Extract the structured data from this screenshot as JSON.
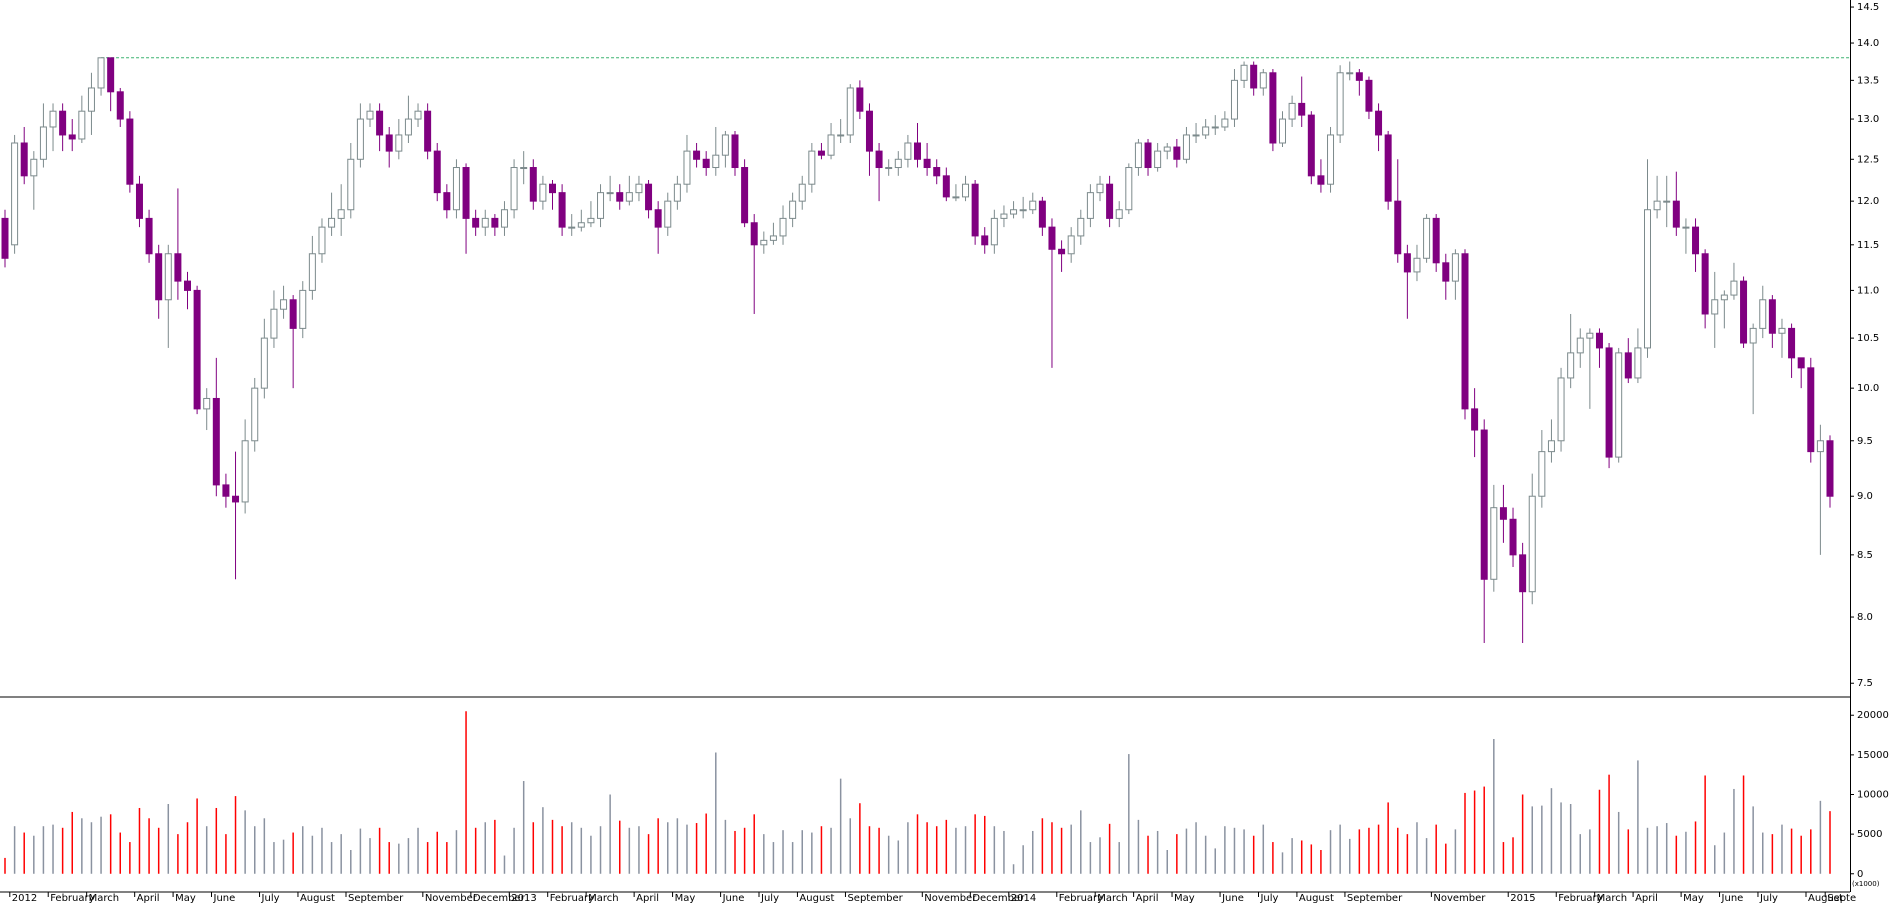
{
  "chart_data": {
    "type": "candlestick",
    "log": true,
    "ylim": [
      7.4,
      14.6
    ],
    "yticks": [
      7.5,
      {
        "value": 8,
        "label": "8.0"
      },
      8.5,
      {
        "value": 9,
        "label": "9.0"
      },
      9.5,
      {
        "value": 10,
        "label": "10.0"
      },
      10.5,
      {
        "value": 11,
        "label": "11.0"
      },
      11.5,
      {
        "value": 12,
        "label": "12.0"
      },
      12.5,
      {
        "value": 13,
        "label": "13.0"
      },
      13.5,
      {
        "value": 14,
        "label": "14.0"
      },
      14.5
    ],
    "y2lim": [
      -2300,
      22300
    ],
    "y2ticks": [
      0,
      5000,
      10000,
      15000,
      20000
    ],
    "y2_label": "(x1000)",
    "up_color": "#ffffff",
    "up_edge_color": "#7c8a8c",
    "down_color": "#800080",
    "volume_up_color": "#8a92a0",
    "volume_down_color": "#ff0000",
    "reference_line": {
      "value": 13.8,
      "color": "#3cb371"
    },
    "categories": [
      null,
      "2012",
      null,
      null,
      null,
      "February",
      null,
      null,
      null,
      "March",
      null,
      null,
      null,
      null,
      "April",
      null,
      null,
      null,
      "May",
      null,
      null,
      null,
      "June",
      null,
      null,
      null,
      null,
      "July",
      null,
      null,
      null,
      "August",
      null,
      null,
      null,
      null,
      "September",
      null,
      null,
      null,
      null,
      null,
      null,
      null,
      "November",
      null,
      null,
      null,
      null,
      "December",
      null,
      null,
      null,
      "2013",
      null,
      null,
      null,
      "February",
      null,
      null,
      null,
      "March",
      null,
      null,
      null,
      null,
      "April",
      null,
      null,
      null,
      "May",
      null,
      null,
      null,
      null,
      "June",
      null,
      null,
      null,
      "July",
      null,
      null,
      null,
      "August",
      null,
      null,
      null,
      null,
      "September",
      null,
      null,
      null,
      null,
      null,
      null,
      null,
      "November",
      null,
      null,
      null,
      null,
      "December",
      null,
      null,
      null,
      "2014",
      null,
      null,
      null,
      null,
      "February",
      null,
      null,
      null,
      "March",
      null,
      null,
      null,
      "April",
      null,
      null,
      null,
      "May",
      null,
      null,
      null,
      null,
      "June",
      null,
      null,
      null,
      "July",
      null,
      null,
      null,
      "August",
      null,
      null,
      null,
      null,
      "September",
      null,
      null,
      null,
      null,
      null,
      null,
      null,
      null,
      "November",
      null,
      null,
      null,
      null,
      null,
      null,
      null,
      "2015",
      null,
      null,
      null,
      null,
      "February",
      null,
      null,
      null,
      "March",
      null,
      null,
      null,
      "April",
      null,
      null,
      null,
      null,
      "May",
      null,
      null,
      null,
      "June",
      null,
      null,
      null,
      "July",
      null,
      null,
      null,
      null,
      "August",
      null,
      "Septe"
    ],
    "open": [
      11.8,
      11.5,
      12.7,
      12.3,
      12.5,
      12.9,
      13.1,
      12.8,
      12.75,
      13.1,
      13.4,
      13.8,
      13.35,
      13.0,
      12.2,
      11.8,
      11.4,
      10.9,
      11.4,
      11.1,
      11.0,
      9.8,
      9.9,
      9.1,
      9.0,
      8.95,
      9.5,
      10.0,
      10.5,
      10.8,
      10.9,
      10.6,
      11.0,
      11.4,
      11.7,
      11.8,
      11.9,
      12.5,
      13.0,
      13.1,
      12.8,
      12.6,
      12.8,
      13.0,
      13.1,
      12.6,
      12.1,
      11.9,
      12.4,
      11.8,
      11.7,
      11.8,
      11.7,
      11.9,
      12.4,
      12.4,
      12.0,
      12.2,
      12.1,
      11.7,
      11.7,
      11.75,
      11.8,
      12.1,
      12.1,
      12.0,
      12.1,
      12.2,
      11.9,
      11.7,
      12.0,
      12.2,
      12.6,
      12.5,
      12.4,
      12.55,
      12.8,
      12.4,
      11.75,
      11.5,
      11.55,
      11.6,
      11.8,
      12.0,
      12.2,
      12.6,
      12.55,
      12.8,
      12.8,
      13.4,
      13.1,
      12.6,
      12.4,
      12.4,
      12.5,
      12.7,
      12.5,
      12.4,
      12.3,
      12.05,
      12.05,
      12.2,
      11.6,
      11.5,
      11.8,
      11.85,
      11.9,
      11.9,
      12.0,
      11.7,
      11.45,
      11.4,
      11.6,
      11.8,
      12.1,
      12.2,
      11.8,
      11.9,
      12.4,
      12.7,
      12.4,
      12.6,
      12.65,
      12.5,
      12.8,
      12.8,
      12.9,
      12.9,
      13.0,
      13.5,
      13.7,
      13.4,
      13.6,
      12.7,
      13.0,
      13.2,
      13.05,
      12.3,
      12.2,
      12.8,
      13.6,
      13.6,
      13.5,
      13.1,
      12.8,
      12.0,
      11.4,
      11.2,
      11.35,
      11.8,
      11.3,
      11.1,
      11.4,
      9.8,
      9.6,
      8.3,
      8.9,
      8.8,
      8.5,
      8.2,
      9.0,
      9.4,
      9.5,
      10.1,
      10.35,
      10.5,
      10.55,
      10.4,
      9.35,
      10.35,
      10.1,
      10.4,
      11.9,
      12.0,
      12.0,
      11.7,
      11.7,
      11.4,
      10.75,
      10.9,
      10.95,
      11.1,
      10.45,
      10.6,
      10.9,
      10.55,
      10.6,
      10.3,
      10.2,
      9.4,
      9.5
    ],
    "high": [
      11.9,
      12.8,
      12.9,
      12.6,
      13.2,
      13.2,
      13.2,
      13.0,
      13.3,
      13.6,
      13.8,
      13.8,
      13.4,
      13.1,
      12.3,
      11.9,
      11.5,
      11.5,
      12.15,
      11.2,
      11.05,
      10.0,
      10.3,
      9.2,
      9.4,
      9.7,
      10.1,
      10.7,
      11.0,
      11.05,
      10.95,
      11.1,
      11.6,
      11.8,
      12.1,
      12.2,
      12.7,
      13.2,
      13.2,
      13.2,
      12.9,
      13.0,
      13.3,
      13.2,
      13.2,
      12.7,
      12.2,
      12.5,
      12.45,
      11.9,
      11.9,
      11.85,
      12.0,
      12.5,
      12.6,
      12.5,
      12.3,
      12.25,
      12.2,
      11.85,
      11.9,
      12.0,
      12.2,
      12.3,
      12.2,
      12.3,
      12.3,
      12.25,
      12.0,
      12.1,
      12.3,
      12.8,
      12.7,
      12.6,
      12.9,
      12.85,
      12.85,
      12.5,
      11.85,
      11.65,
      11.75,
      11.95,
      12.1,
      12.3,
      12.7,
      12.7,
      12.95,
      13.0,
      13.45,
      13.5,
      13.2,
      12.7,
      12.5,
      12.6,
      12.8,
      12.95,
      12.7,
      12.5,
      12.4,
      12.2,
      12.3,
      12.25,
      11.7,
      11.9,
      11.95,
      12.0,
      12.05,
      12.1,
      12.05,
      11.8,
      11.55,
      11.7,
      11.9,
      12.2,
      12.3,
      12.3,
      12.0,
      12.45,
      12.75,
      12.75,
      12.7,
      12.7,
      12.75,
      12.9,
      12.95,
      13.0,
      13.05,
      13.1,
      13.65,
      13.75,
      13.75,
      13.65,
      13.65,
      13.1,
      13.3,
      13.55,
      13.1,
      12.5,
      12.9,
      13.7,
      13.75,
      13.65,
      13.55,
      13.2,
      12.85,
      12.5,
      11.5,
      11.5,
      11.85,
      11.85,
      11.4,
      11.45,
      11.45,
      10.0,
      9.7,
      9.1,
      9.1,
      8.9,
      8.6,
      9.2,
      9.6,
      9.7,
      10.2,
      10.75,
      10.6,
      10.6,
      10.6,
      10.45,
      10.4,
      10.5,
      10.6,
      12.5,
      12.3,
      12.3,
      12.35,
      11.8,
      11.8,
      11.45,
      11.2,
      11.0,
      11.3,
      11.15,
      10.65,
      11.05,
      10.95,
      10.7,
      10.65,
      10.3,
      10.3,
      9.65,
      9.55
    ],
    "low": [
      11.25,
      11.4,
      12.2,
      11.9,
      12.4,
      12.6,
      12.6,
      12.6,
      12.7,
      12.8,
      13.3,
      13.1,
      12.9,
      12.1,
      11.7,
      11.3,
      10.7,
      10.4,
      10.9,
      10.8,
      9.75,
      9.6,
      9.0,
      8.9,
      8.3,
      8.85,
      9.4,
      9.9,
      10.4,
      10.7,
      10.0,
      10.5,
      10.9,
      11.3,
      11.6,
      11.6,
      11.8,
      12.4,
      12.9,
      12.6,
      12.4,
      12.5,
      12.7,
      12.9,
      12.5,
      12.0,
      11.8,
      11.8,
      11.4,
      11.6,
      11.6,
      11.6,
      11.6,
      11.8,
      12.2,
      11.9,
      11.9,
      11.9,
      11.6,
      11.6,
      11.65,
      11.7,
      11.7,
      12.0,
      11.9,
      11.95,
      12.0,
      11.8,
      11.4,
      11.6,
      11.9,
      12.1,
      12.4,
      12.3,
      12.3,
      12.4,
      12.3,
      11.7,
      10.75,
      11.4,
      11.5,
      11.5,
      11.7,
      11.9,
      12.1,
      12.5,
      12.5,
      12.7,
      12.7,
      13.0,
      12.3,
      12.0,
      12.3,
      12.3,
      12.4,
      12.4,
      12.3,
      12.2,
      12.0,
      12.0,
      12.0,
      11.5,
      11.4,
      11.4,
      11.7,
      11.8,
      11.8,
      11.85,
      11.6,
      10.2,
      11.2,
      11.3,
      11.5,
      11.7,
      12.0,
      11.7,
      11.7,
      11.85,
      12.3,
      12.3,
      12.35,
      12.5,
      12.4,
      12.45,
      12.7,
      12.75,
      12.8,
      12.85,
      12.9,
      13.4,
      13.3,
      13.3,
      12.6,
      12.65,
      12.9,
      12.9,
      12.2,
      12.1,
      12.1,
      12.7,
      13.5,
      13.3,
      13.0,
      12.6,
      11.9,
      11.3,
      10.7,
      11.1,
      11.3,
      11.2,
      10.9,
      10.9,
      9.7,
      9.35,
      7.8,
      8.2,
      8.6,
      8.4,
      7.8,
      8.1,
      8.9,
      9.3,
      9.4,
      10.0,
      10.2,
      9.8,
      10.2,
      9.25,
      9.3,
      10.05,
      10.05,
      10.3,
      11.8,
      11.7,
      11.6,
      11.4,
      11.2,
      10.6,
      10.4,
      10.6,
      10.9,
      10.4,
      9.75,
      10.5,
      10.4,
      10.3,
      10.1,
      10.0,
      9.3,
      8.5,
      8.9
    ],
    "close": [
      11.35,
      12.7,
      12.3,
      12.5,
      12.9,
      13.1,
      12.8,
      12.75,
      13.1,
      13.4,
      13.8,
      13.35,
      13.0,
      12.2,
      11.8,
      11.4,
      10.9,
      11.4,
      11.1,
      11.0,
      9.8,
      9.9,
      9.1,
      9.0,
      8.95,
      9.5,
      10.0,
      10.5,
      10.8,
      10.9,
      10.6,
      11.0,
      11.4,
      11.7,
      11.8,
      11.9,
      12.5,
      13.0,
      13.1,
      12.8,
      12.6,
      12.8,
      13.0,
      13.1,
      12.6,
      12.1,
      11.9,
      12.4,
      11.8,
      11.7,
      11.8,
      11.7,
      11.9,
      12.4,
      12.4,
      12.0,
      12.2,
      12.1,
      11.7,
      11.7,
      11.75,
      11.8,
      12.1,
      12.1,
      12.0,
      12.1,
      12.2,
      11.9,
      11.7,
      12.0,
      12.2,
      12.6,
      12.5,
      12.4,
      12.55,
      12.8,
      12.4,
      11.75,
      11.5,
      11.55,
      11.6,
      11.8,
      12.0,
      12.2,
      12.6,
      12.55,
      12.8,
      12.8,
      13.4,
      13.1,
      12.6,
      12.4,
      12.4,
      12.5,
      12.7,
      12.5,
      12.4,
      12.3,
      12.05,
      12.05,
      12.2,
      11.6,
      11.5,
      11.8,
      11.85,
      11.9,
      11.9,
      12.0,
      11.7,
      11.45,
      11.4,
      11.6,
      11.8,
      12.1,
      12.2,
      11.8,
      11.9,
      12.4,
      12.7,
      12.4,
      12.6,
      12.65,
      12.5,
      12.8,
      12.8,
      12.9,
      12.9,
      13.0,
      13.5,
      13.7,
      13.4,
      13.6,
      12.7,
      13.0,
      13.2,
      13.05,
      12.3,
      12.2,
      12.8,
      13.6,
      13.6,
      13.5,
      13.1,
      12.8,
      12.0,
      11.4,
      11.2,
      11.35,
      11.8,
      11.3,
      11.1,
      11.4,
      9.8,
      9.6,
      8.3,
      8.9,
      8.8,
      8.5,
      8.2,
      9.0,
      9.4,
      9.5,
      10.1,
      10.35,
      10.5,
      10.55,
      10.4,
      9.35,
      10.35,
      10.1,
      10.4,
      11.9,
      12.0,
      12.0,
      11.7,
      11.7,
      11.4,
      10.75,
      10.9,
      10.95,
      11.1,
      10.45,
      10.6,
      10.9,
      10.55,
      10.6,
      10.3,
      10.2,
      9.4,
      9.5,
      9.0
    ],
    "volume": [
      2000,
      6000,
      5200,
      4800,
      6000,
      6200,
      5800,
      7800,
      7000,
      6500,
      7200,
      7500,
      5200,
      4000,
      8300,
      7000,
      5800,
      8800,
      5000,
      6500,
      9500,
      6000,
      8300,
      5000,
      9800,
      8000,
      6000,
      7000,
      4000,
      4300,
      5200,
      6000,
      4800,
      5800,
      4000,
      5000,
      3000,
      5700,
      4500,
      5800,
      4000,
      3800,
      4500,
      5800,
      4000,
      5300,
      4000,
      5500,
      20500,
      5800,
      6500,
      6800,
      2300,
      5800,
      11700,
      6500,
      8400,
      6800,
      6000,
      6500,
      5800,
      4800,
      6000,
      10000,
      6700,
      5800,
      6000,
      5000,
      7000,
      6500,
      7000,
      6200,
      6400,
      7600,
      15300,
      6800,
      5400,
      5800,
      7500,
      5000,
      4000,
      5500,
      4000,
      5500,
      5200,
      6000,
      5800,
      12000,
      7000,
      8900,
      6000,
      5800,
      4800,
      4200,
      6500,
      7500,
      6500,
      6000,
      6800,
      5800,
      6000,
      7500,
      7300,
      6000,
      5400,
      1200,
      3600,
      5400,
      7000,
      6500,
      5800,
      6200,
      8000,
      4000,
      4600,
      6300,
      4000,
      15100,
      6800,
      4800,
      5400,
      3000,
      5000,
      5700,
      6500,
      4800,
      3200,
      6000,
      5800,
      5600,
      4800,
      6200,
      4000,
      2700,
      4500,
      4200,
      3700,
      3000,
      5500,
      6200,
      4400,
      5600,
      5800,
      6200,
      9000,
      5800,
      5000,
      6500,
      4500,
      6200,
      3800,
      5600,
      10200,
      10500,
      11000,
      17000,
      4000,
      4600,
      10000,
      8500,
      8600,
      10800,
      9000,
      8800,
      5000,
      5600,
      10600,
      12500,
      7800,
      5600,
      14300,
      5800,
      6000,
      6400,
      4800,
      5300,
      6600,
      12400,
      3600,
      5200,
      10700,
      12400,
      8500,
      5200,
      5000,
      6200,
      5700,
      4800,
      5600,
      9200,
      7900
    ]
  }
}
